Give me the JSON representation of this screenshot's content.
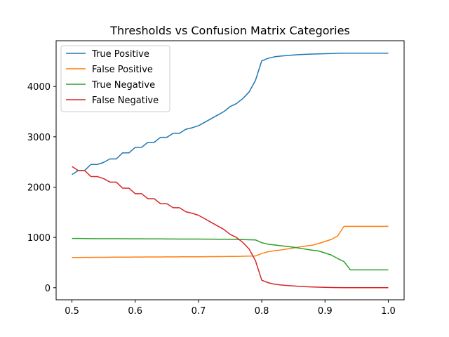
{
  "chart_data": {
    "type": "line",
    "title": "Thresholds vs Confusion Matrix Categories",
    "xlabel": "",
    "ylabel": "",
    "xlim": [
      0.475,
      1.025
    ],
    "ylim": [
      -240,
      4910
    ],
    "xticks": [
      0.5,
      0.6,
      0.7,
      0.8,
      0.9,
      1.0
    ],
    "xtick_labels": [
      "0.5",
      "0.6",
      "0.7",
      "0.8",
      "0.9",
      "1.0"
    ],
    "yticks": [
      0,
      1000,
      2000,
      3000,
      4000
    ],
    "ytick_labels": [
      "0",
      "1000",
      "2000",
      "3000",
      "4000"
    ],
    "grid": false,
    "legend_position": "upper-left",
    "x": [
      0.5,
      0.51,
      0.52,
      0.53,
      0.54,
      0.55,
      0.56,
      0.57,
      0.58,
      0.59,
      0.6,
      0.61,
      0.62,
      0.63,
      0.64,
      0.65,
      0.66,
      0.67,
      0.68,
      0.69,
      0.7,
      0.71,
      0.72,
      0.73,
      0.74,
      0.75,
      0.76,
      0.77,
      0.78,
      0.79,
      0.8,
      0.81,
      0.82,
      0.83,
      0.84,
      0.85,
      0.86,
      0.87,
      0.88,
      0.89,
      0.9,
      0.91,
      0.92,
      0.93,
      0.94,
      0.95,
      0.96,
      0.97,
      0.98,
      0.99,
      1.0
    ],
    "series": [
      {
        "name": "True Positive",
        "color": "#1f77b4",
        "values": [
          2250,
          2330,
          2330,
          2450,
          2450,
          2490,
          2560,
          2560,
          2680,
          2680,
          2790,
          2790,
          2890,
          2890,
          2990,
          2990,
          3070,
          3070,
          3150,
          3180,
          3220,
          3290,
          3360,
          3430,
          3500,
          3600,
          3660,
          3760,
          3890,
          4120,
          4510,
          4560,
          4590,
          4605,
          4615,
          4625,
          4635,
          4640,
          4645,
          4648,
          4652,
          4656,
          4660,
          4662,
          4663,
          4663,
          4663,
          4663,
          4663,
          4663,
          4663
        ]
      },
      {
        "name": "False Positive",
        "color": "#ff7f0e",
        "values": [
          600,
          600,
          602,
          603,
          604,
          605,
          606,
          607,
          608,
          608,
          609,
          610,
          611,
          612,
          612,
          613,
          613,
          614,
          614,
          615,
          615,
          617,
          618,
          619,
          620,
          621,
          622,
          626,
          628,
          630,
          680,
          715,
          735,
          750,
          770,
          790,
          810,
          830,
          845,
          880,
          920,
          960,
          1030,
          1220,
          1220,
          1220,
          1220,
          1220,
          1220,
          1220,
          1220
        ]
      },
      {
        "name": "True Negative",
        "color": "#2ca02c",
        "values": [
          980,
          980,
          978,
          976,
          975,
          975,
          974,
          974,
          974,
          973,
          973,
          972,
          971,
          970,
          970,
          969,
          969,
          968,
          968,
          967,
          967,
          966,
          965,
          964,
          963,
          962,
          961,
          956,
          953,
          950,
          895,
          865,
          850,
          835,
          820,
          805,
          785,
          765,
          745,
          730,
          690,
          650,
          580,
          520,
          355,
          355,
          355,
          355,
          355,
          355,
          355
        ]
      },
      {
        "name": "False Negative",
        "color": "#d62728",
        "values": [
          2410,
          2330,
          2330,
          2210,
          2210,
          2170,
          2100,
          2100,
          1980,
          1980,
          1870,
          1870,
          1770,
          1770,
          1670,
          1670,
          1590,
          1590,
          1510,
          1480,
          1440,
          1370,
          1300,
          1230,
          1160,
          1060,
          1000,
          900,
          770,
          540,
          150,
          100,
          70,
          55,
          45,
          35,
          25,
          20,
          15,
          12,
          8,
          4,
          2,
          0,
          0,
          0,
          0,
          0,
          0,
          0,
          0
        ]
      }
    ]
  }
}
